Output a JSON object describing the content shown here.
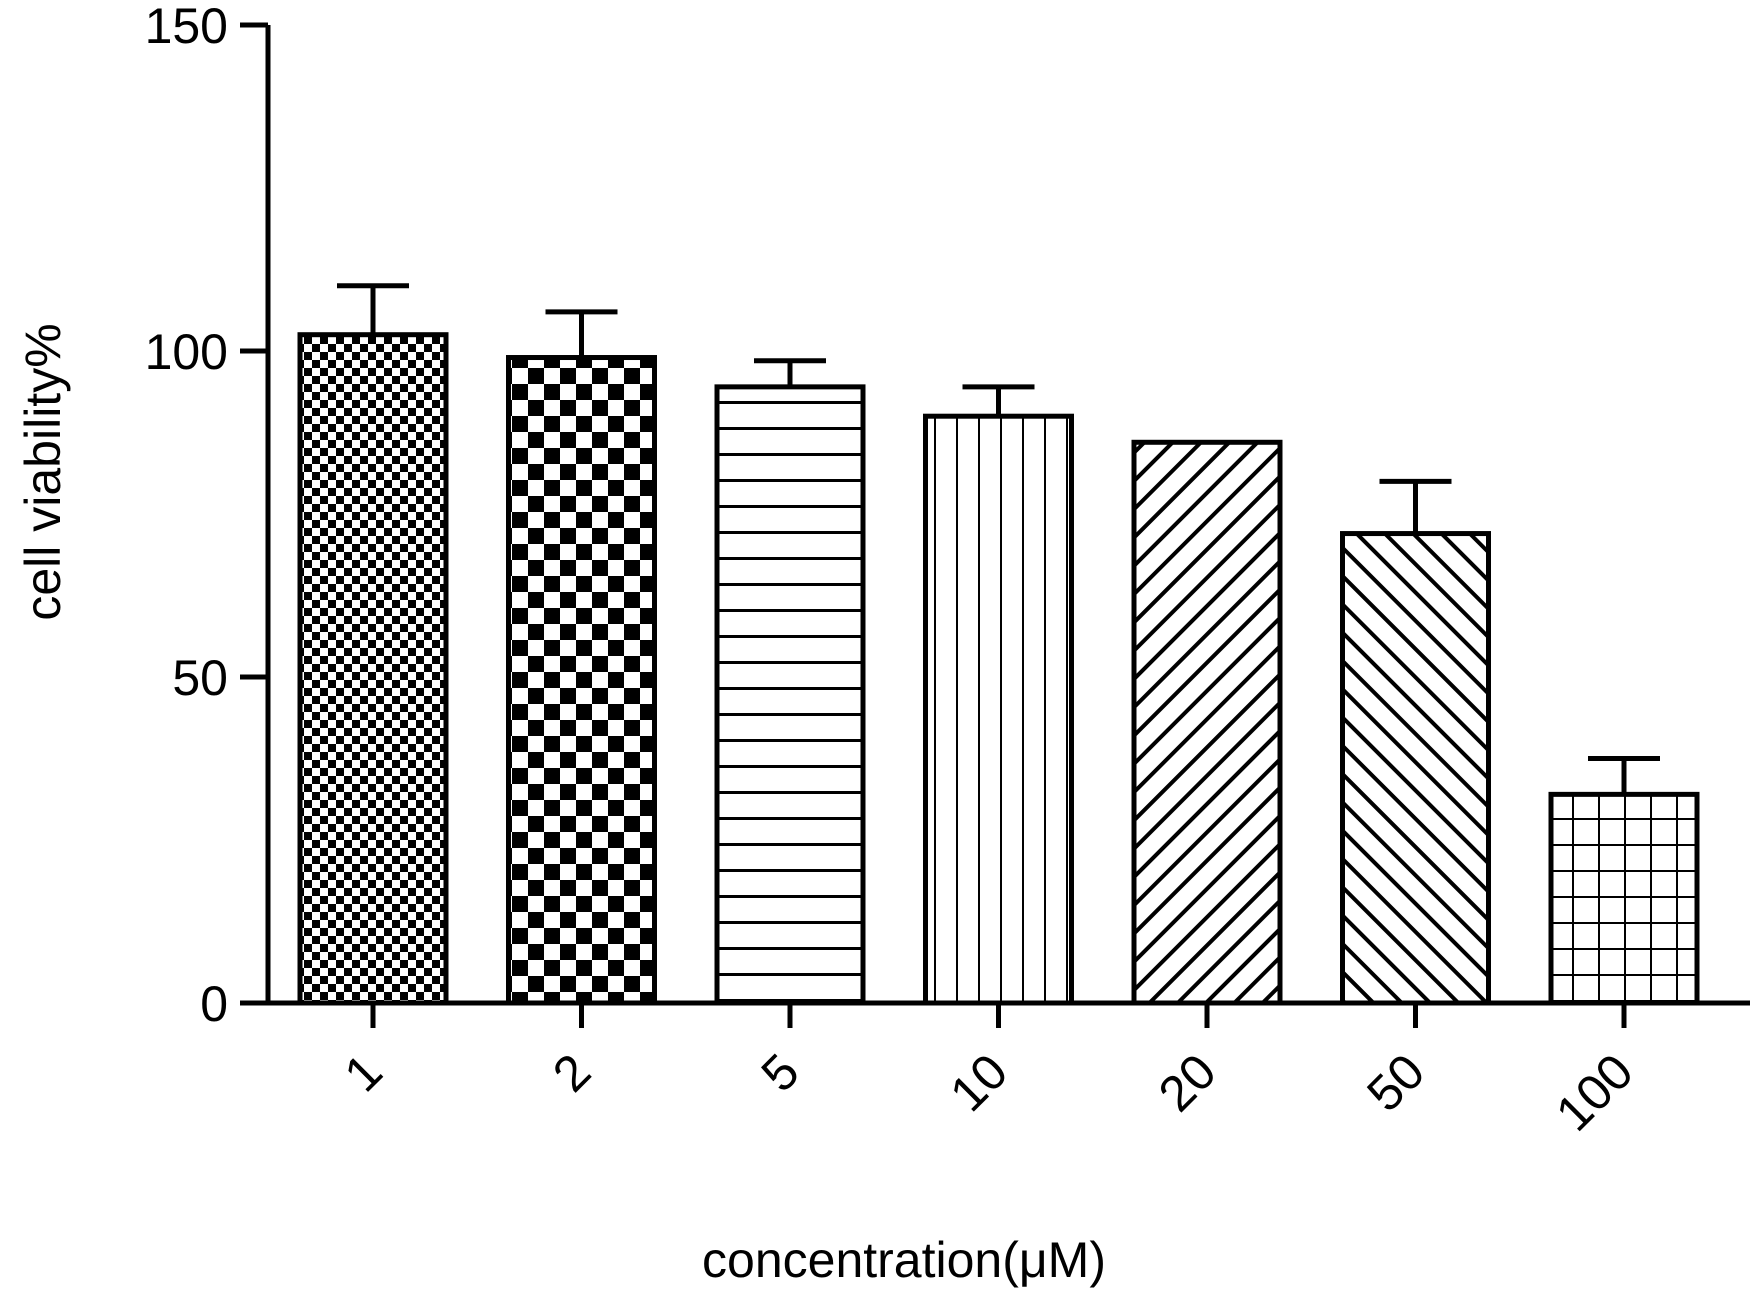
{
  "chart_data": {
    "type": "bar",
    "title": "",
    "xlabel": "concentration(μM)",
    "ylabel": "cell viability%",
    "categories": [
      "1",
      "2",
      "5",
      "10",
      "20",
      "50",
      "100"
    ],
    "values": [
      102.5,
      99,
      94.5,
      90,
      86,
      72,
      32
    ],
    "error_upper": [
      110,
      106,
      98.5,
      94.5,
      86,
      80,
      37.5
    ],
    "ylim": [
      0,
      150
    ],
    "yticks": [
      "0",
      "50",
      "100",
      "150"
    ],
    "ytick_values": [
      0,
      50,
      100,
      150
    ],
    "grid": false,
    "legend": "none",
    "bar_patterns": [
      "fine-checker",
      "checker",
      "horizontal-lines",
      "vertical-lines",
      "diagonal-up",
      "diagonal-down",
      "grid"
    ],
    "colors": {
      "ink": "#000000",
      "fill": "#ffffff"
    }
  }
}
